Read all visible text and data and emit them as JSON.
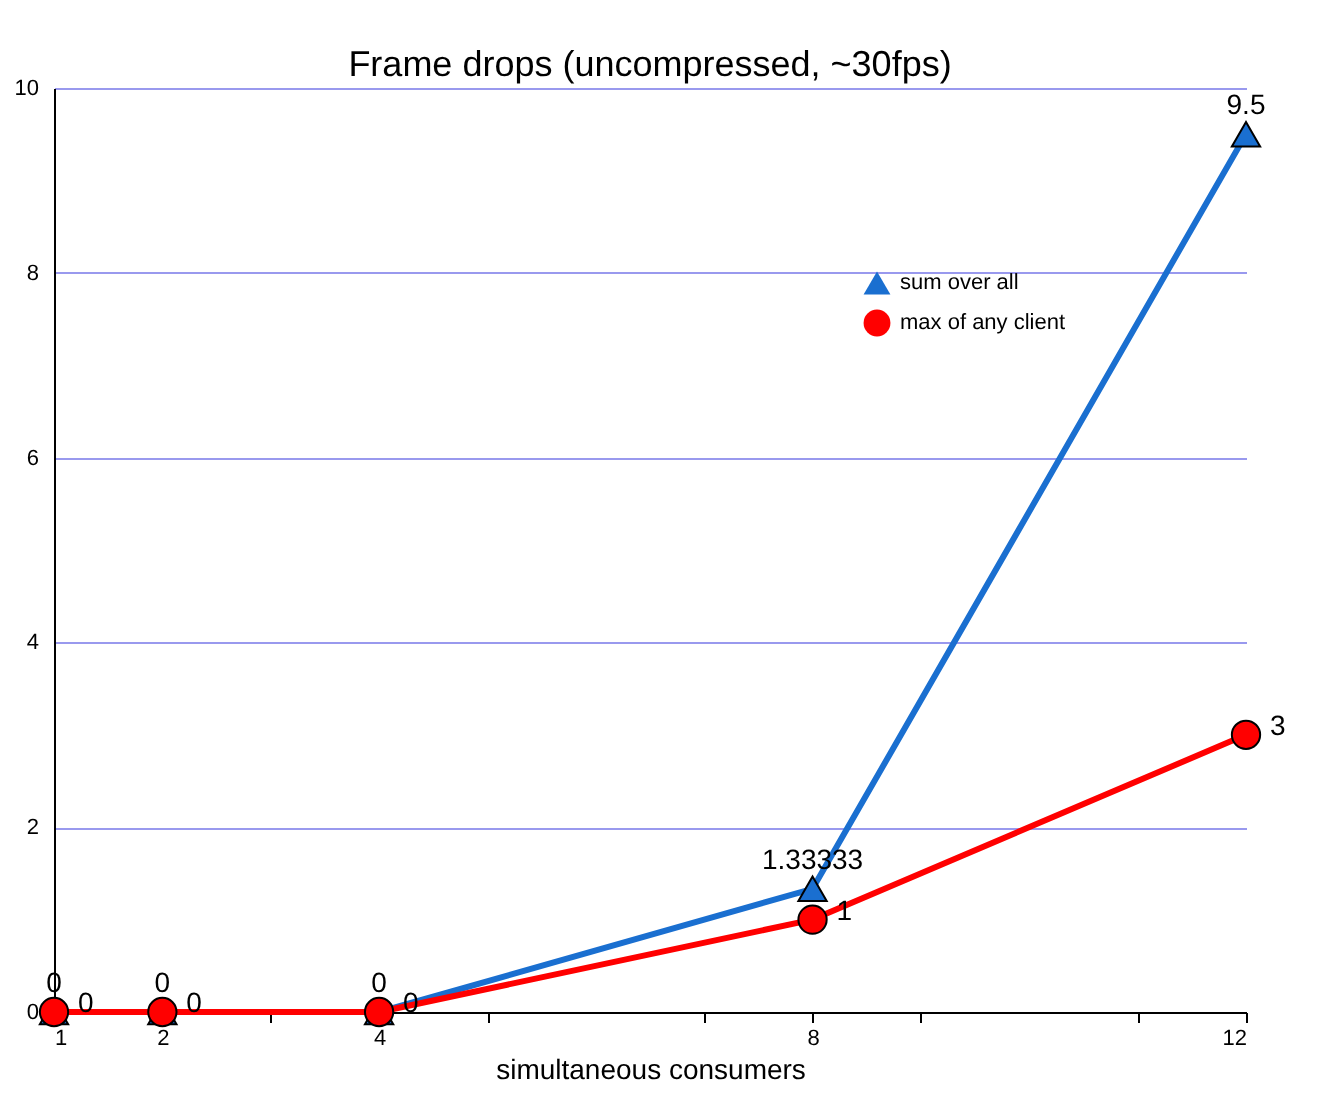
{
  "chart_data": {
    "type": "line",
    "title": "Frame drops (uncompressed, ~30fps)",
    "xlabel": "simultaneous consumers",
    "x": [
      1,
      2,
      4,
      8,
      12
    ],
    "series": [
      {
        "name": "sum over all",
        "color": "#1a6fd0",
        "marker": "triangle",
        "values": [
          0,
          0,
          0,
          1.33333,
          9.5
        ]
      },
      {
        "name": "max of any client",
        "color": "#ff0000",
        "marker": "circle",
        "values": [
          0,
          0,
          0,
          1,
          3
        ]
      }
    ],
    "xlim": [
      1,
      12
    ],
    "xticks": [
      1,
      2,
      {
        "value": 3,
        "label": null
      },
      4,
      {
        "value": 5,
        "label": null
      },
      {
        "value": 7,
        "label": null
      },
      8,
      {
        "value": 9,
        "label": null
      },
      {
        "value": 11,
        "label": null
      },
      12
    ],
    "ylim": [
      0,
      10
    ],
    "yticks": [
      0,
      2,
      4,
      6,
      8,
      10
    ],
    "grid": "y",
    "legend": "top right",
    "data_labels": true
  }
}
